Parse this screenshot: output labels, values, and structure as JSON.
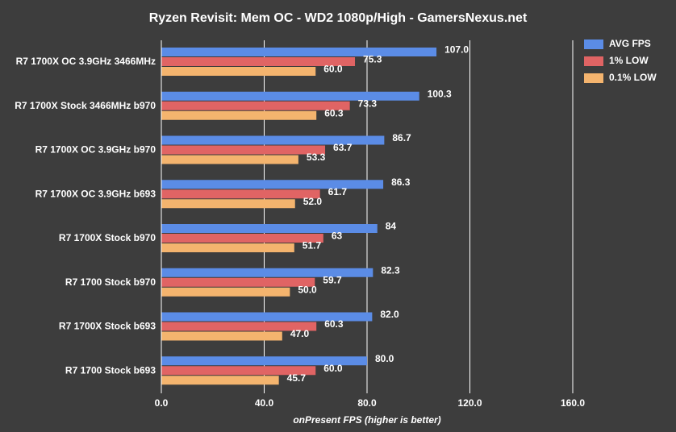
{
  "chart_data": {
    "type": "hbar",
    "title": "Ryzen Revisit: Mem OC - WD2 1080p/High - GamersNexus.net",
    "x_label": "onPresent FPS (higher is better)",
    "categories": [
      "R7 1700X OC 3.9GHz 3466MHz",
      "R7 1700X Stock 3466MHz b970",
      "R7 1700X OC 3.9GHz b970",
      "R7 1700X OC 3.9GHz b693",
      "R7 1700X Stock b970",
      "R7 1700 Stock b970",
      "R7 1700X Stock b693",
      "R7 1700 Stock b693"
    ],
    "series": [
      {
        "name": "AVG FPS",
        "color": "#5b8ce6",
        "values": [
          107.0,
          100.3,
          86.7,
          86.3,
          84,
          82.3,
          82.0,
          80.0
        ],
        "value_labels": [
          "107.0",
          "100.3",
          "86.7",
          "86.3",
          "84",
          "82.3",
          "82.0",
          "80.0"
        ]
      },
      {
        "name": "1% LOW",
        "color": "#e06464",
        "values": [
          75.3,
          73.3,
          63.7,
          61.7,
          63,
          59.7,
          60.3,
          60.0
        ],
        "value_labels": [
          "75.3",
          "73.3",
          "63.7",
          "61.7",
          "63",
          "59.7",
          "60.3",
          "60.0"
        ]
      },
      {
        "name": "0.1% LOW",
        "color": "#f4b46e",
        "values": [
          60.0,
          60.3,
          53.3,
          52.0,
          51.7,
          50.0,
          47.0,
          45.7
        ],
        "value_labels": [
          "60.0",
          "60.3",
          "53.3",
          "52.0",
          "51.7",
          "50.0",
          "47.0",
          "45.7"
        ]
      }
    ],
    "xlim": [
      0,
      160
    ],
    "xticks": [
      {
        "value": 0,
        "label": "0.0"
      },
      {
        "value": 40,
        "label": "40.0"
      },
      {
        "value": 80,
        "label": "80.0"
      },
      {
        "value": 120,
        "label": "120.0"
      },
      {
        "value": 160,
        "label": "160.0"
      }
    ],
    "grid": true,
    "legend": "top-right"
  }
}
